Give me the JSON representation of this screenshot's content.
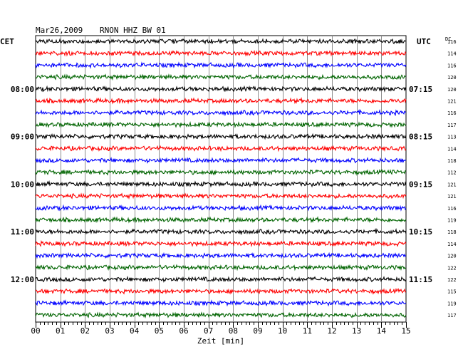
{
  "header": {
    "date": "Mar26,2009",
    "station": "RNON HHZ BW 01"
  },
  "left_zone": "CET",
  "right_zone": "UTC",
  "dc_header": "DC",
  "chart_data": {
    "type": "line",
    "xlabel": "Zeit [min]",
    "x_range": [
      0,
      15
    ],
    "x_ticks": [
      "00",
      "01",
      "02",
      "03",
      "04",
      "05",
      "06",
      "07",
      "08",
      "09",
      "10",
      "11",
      "12",
      "13",
      "14",
      "15"
    ],
    "n_traces": 24,
    "trace_colors": [
      "#000000",
      "#ff0000",
      "#0000ff",
      "#006400"
    ],
    "grid": true,
    "left_hour_labels": [
      {
        "trace": 4,
        "label": "08:00"
      },
      {
        "trace": 8,
        "label": "09:00"
      },
      {
        "trace": 12,
        "label": "10:00"
      },
      {
        "trace": 16,
        "label": "11:00"
      },
      {
        "trace": 20,
        "label": "12:00"
      }
    ],
    "right_hour_labels": [
      {
        "trace": 4,
        "label": "07:15"
      },
      {
        "trace": 8,
        "label": "08:15"
      },
      {
        "trace": 12,
        "label": "09:15"
      },
      {
        "trace": 16,
        "label": "10:15"
      },
      {
        "trace": 20,
        "label": "11:15"
      }
    ],
    "dc_offsets": [
      "116",
      "114",
      "116",
      "120",
      "120",
      "121",
      "116",
      "117",
      "113",
      "114",
      "118",
      "112",
      "121",
      "121",
      "116",
      "119",
      "118",
      "114",
      "120",
      "122",
      "122",
      "115",
      "119",
      "117"
    ]
  }
}
